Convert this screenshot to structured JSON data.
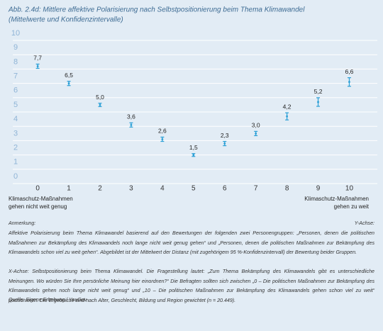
{
  "chart_data": {
    "type": "errorbar",
    "title": "Abb. 2.4d: Mittlere affektive Polarisierung nach Selbstpositionierung beim Thema Klimawandel",
    "subtitle": "(Mittelwerte und Konfidenzintervalle)",
    "x": [
      0,
      1,
      2,
      3,
      4,
      5,
      6,
      7,
      8,
      9,
      10
    ],
    "values": [
      7.7,
      6.5,
      5.0,
      3.6,
      2.6,
      1.5,
      2.3,
      3.0,
      4.2,
      5.2,
      6.6
    ],
    "value_labels": [
      "7,7",
      "6,5",
      "5,0",
      "3,6",
      "2,6",
      "1,5",
      "2,3",
      "3,0",
      "4,2",
      "5,2",
      "6,6"
    ],
    "errors": [
      0.15,
      0.15,
      0.12,
      0.15,
      0.15,
      0.1,
      0.15,
      0.15,
      0.25,
      0.3,
      0.3
    ],
    "color": "#2a9fd6",
    "xlim": [
      -0.8,
      10.9
    ],
    "xticks": [
      0,
      1,
      2,
      3,
      4,
      5,
      6,
      7,
      8,
      9,
      10
    ],
    "ylim": [
      0,
      10
    ],
    "yticks": [
      0,
      1,
      2,
      3,
      4,
      5,
      6,
      7,
      8,
      9,
      10
    ],
    "grid": true,
    "x_low_label": [
      "Klimaschutz-Maßnahmen",
      "gehen nicht weit genug"
    ],
    "x_high_label": [
      "Klimaschutz-Maßnahmen",
      "gehen zu weit"
    ]
  },
  "notes": {
    "left_head": "Anmerkung:",
    "right_head": "Y-Achse:",
    "paragraph_1": "Affektive Polarisierung beim Thema Klimawandel basierend auf den Bewertungen der folgenden zwei Personengruppen: „Personen, denen die politischen Maßnahmen zur Bekämpfung des Klimawandels noch lange nicht weit genug gehen“ und „Personen, denen die politischen Maßnahmen zur Bekämpfung des Klimawandels schon viel zu weit gehen“. Abgebildet ist der Mittelwert der Distanz (mit zugehörigem 95 %-Konfidenzintervall) der Bewertung beider Gruppen.",
    "paragraph_2": "X-Achse: Selbstpositionierung beim Thema Klimawandel. Die Fragestellung lautet: „Zum Thema Bekämpfung des Klimawandels gibt es unterschiedliche Meinungen. Wo würden Sie Ihre persönliche Meinung hier einordnen?“ Die Befragten sollten sich zwischen „0 – Die politischen Maßnahmen zur Bekämpfung des Klimawandels gehen noch lange nicht weit genug“ und „10 – Die politischen Maßnahmen zur Bekämpfung des Klimawandels gehen schon viel zu weit“ positionieren. Die Ergebnisse sind nach Alter, Geschlecht, Bildung und Region gewichtet (n = 20.449).",
    "source": "Quelle: Eigene Erhebung / YouGov"
  }
}
